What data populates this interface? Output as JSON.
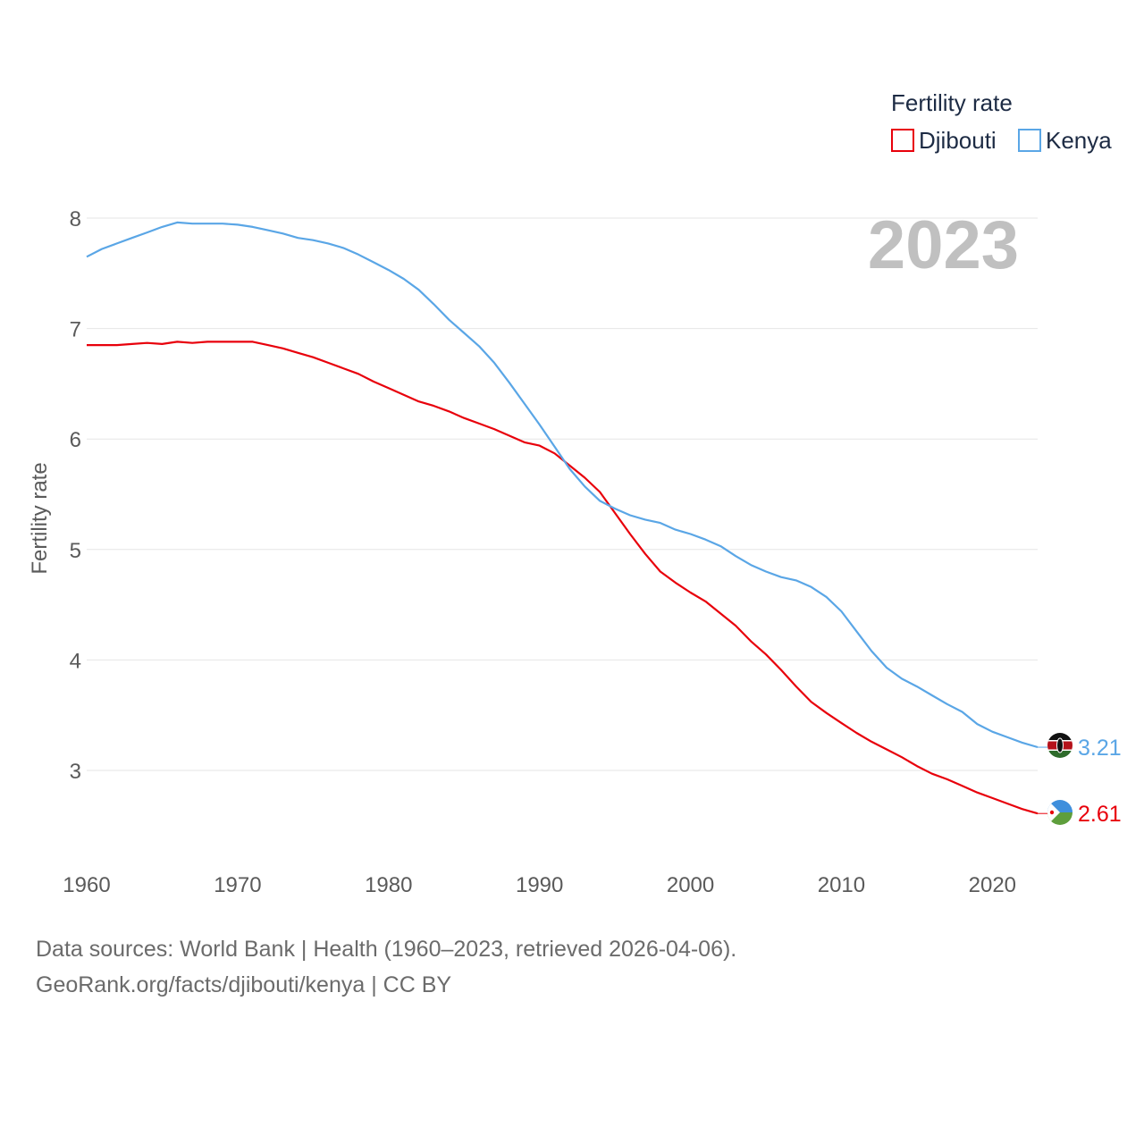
{
  "chart_data": {
    "type": "line",
    "title": "",
    "xlabel": "",
    "ylabel": "Fertility rate",
    "xlim": [
      1960,
      2023
    ],
    "ylim": [
      2.4,
      8.2
    ],
    "xticks": [
      1960,
      1970,
      1980,
      1990,
      2000,
      2010,
      2020
    ],
    "yticks": [
      3,
      4,
      5,
      6,
      7,
      8
    ],
    "year_label": "2023",
    "legend": {
      "title": "Fertility rate",
      "position": "top-right"
    },
    "x": [
      1960,
      1961,
      1962,
      1963,
      1964,
      1965,
      1966,
      1967,
      1968,
      1969,
      1970,
      1971,
      1972,
      1973,
      1974,
      1975,
      1976,
      1977,
      1978,
      1979,
      1980,
      1981,
      1982,
      1983,
      1984,
      1985,
      1986,
      1987,
      1988,
      1989,
      1990,
      1991,
      1992,
      1993,
      1994,
      1995,
      1996,
      1997,
      1998,
      1999,
      2000,
      2001,
      2002,
      2003,
      2004,
      2005,
      2006,
      2007,
      2008,
      2009,
      2010,
      2011,
      2012,
      2013,
      2014,
      2015,
      2016,
      2017,
      2018,
      2019,
      2020,
      2021,
      2022,
      2023
    ],
    "series": [
      {
        "name": "Djibouti",
        "color": "#e8000b",
        "end_label": "2.61",
        "flag": "djibouti",
        "values": [
          6.85,
          6.85,
          6.85,
          6.86,
          6.87,
          6.86,
          6.88,
          6.87,
          6.88,
          6.88,
          6.88,
          6.88,
          6.85,
          6.82,
          6.78,
          6.74,
          6.69,
          6.64,
          6.59,
          6.52,
          6.46,
          6.4,
          6.34,
          6.3,
          6.25,
          6.19,
          6.14,
          6.09,
          6.03,
          5.97,
          5.94,
          5.87,
          5.76,
          5.65,
          5.52,
          5.33,
          5.14,
          4.96,
          4.8,
          4.7,
          4.61,
          4.53,
          4.42,
          4.31,
          4.17,
          4.05,
          3.91,
          3.76,
          3.62,
          3.52,
          3.43,
          3.34,
          3.26,
          3.19,
          3.12,
          3.04,
          2.97,
          2.92,
          2.86,
          2.8,
          2.75,
          2.7,
          2.65,
          2.61
        ]
      },
      {
        "name": "Kenya",
        "color": "#5aa6e6",
        "end_label": "3.21",
        "flag": "kenya",
        "values": [
          7.65,
          7.72,
          7.77,
          7.82,
          7.87,
          7.92,
          7.96,
          7.95,
          7.95,
          7.95,
          7.94,
          7.92,
          7.89,
          7.86,
          7.82,
          7.8,
          7.77,
          7.73,
          7.67,
          7.6,
          7.53,
          7.45,
          7.35,
          7.22,
          7.08,
          6.96,
          6.84,
          6.69,
          6.51,
          6.32,
          6.13,
          5.93,
          5.73,
          5.57,
          5.44,
          5.37,
          5.31,
          5.27,
          5.24,
          5.18,
          5.14,
          5.09,
          5.03,
          4.94,
          4.86,
          4.8,
          4.75,
          4.72,
          4.66,
          4.57,
          4.44,
          4.26,
          4.08,
          3.93,
          3.83,
          3.76,
          3.68,
          3.6,
          3.53,
          3.42,
          3.35,
          3.3,
          3.25,
          3.21
        ]
      }
    ]
  },
  "footer": {
    "line1": "Data sources: World Bank | Health (1960–2023, retrieved 2026-04-06).",
    "line2": "GeoRank.org/facts/djibouti/kenya | CC BY"
  }
}
